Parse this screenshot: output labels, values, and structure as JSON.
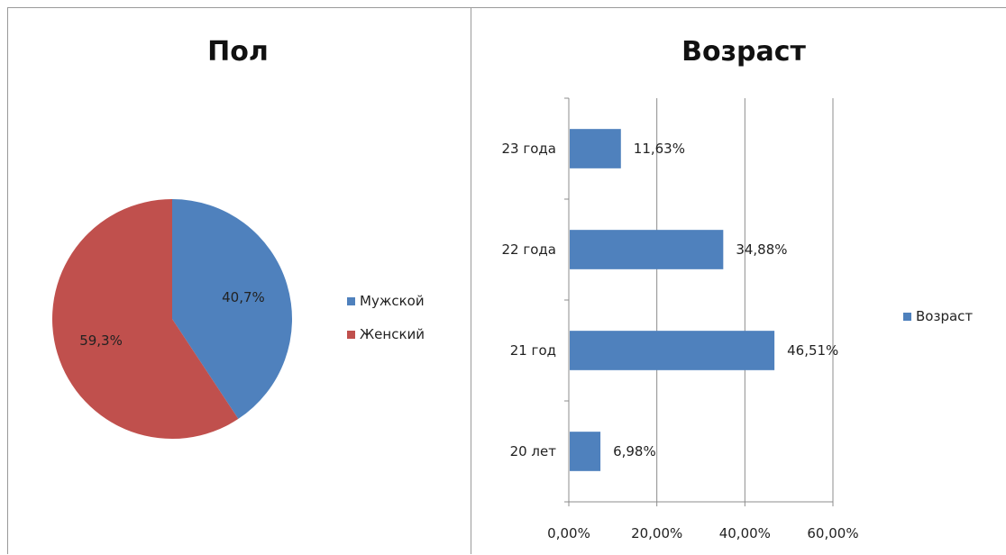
{
  "chart_data": [
    {
      "type": "pie",
      "title": "Пол",
      "categories": [
        "Мужской",
        "Женский"
      ],
      "values": [
        40.7,
        59.3
      ],
      "data_labels": [
        "40,7%",
        "59,3%"
      ],
      "colors": [
        "#4f81bd",
        "#c0504d"
      ],
      "legend_position": "right"
    },
    {
      "type": "bar",
      "orientation": "horizontal",
      "title": "Возраст",
      "categories": [
        "20 лет",
        "21 год",
        "22 года",
        "23 года"
      ],
      "series": [
        {
          "name": "Возраст",
          "values": [
            6.98,
            46.51,
            34.88,
            11.63
          ],
          "data_labels": [
            "6,98%",
            "46,51%",
            "34,88%",
            "11,63%"
          ]
        }
      ],
      "xlim": [
        0,
        60
      ],
      "x_ticks": [
        "0,00%",
        "20,00%",
        "40,00%",
        "60,00%"
      ],
      "x_tick_values": [
        0,
        20,
        40,
        60
      ],
      "grid": true,
      "color": "#4f81bd",
      "legend_position": "right"
    }
  ]
}
